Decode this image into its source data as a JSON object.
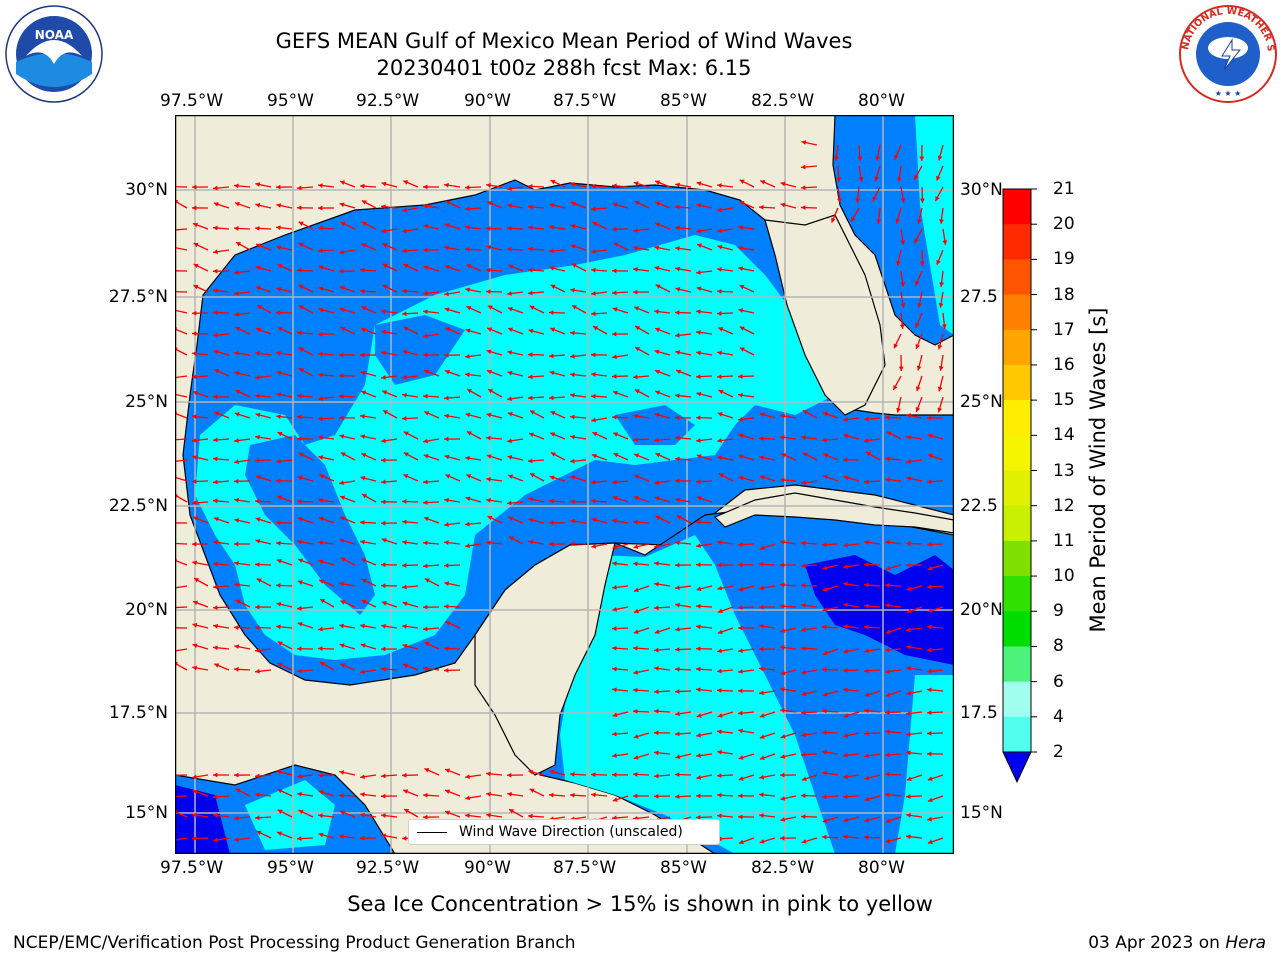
{
  "title": {
    "line1": "GEFS MEAN Gulf of Mexico Mean Period of Wind Waves",
    "line2": "20230401 t00z 288h fcst   Max: 6.15"
  },
  "axes": {
    "lon_labels": [
      "97.5°W",
      "95°W",
      "92.5°W",
      "90°W",
      "87.5°W",
      "85°W",
      "82.5°W",
      "80°W"
    ],
    "lat_labels_left": [
      "30°N",
      "27.5°N",
      "25°N",
      "22.5°N",
      "20°N",
      "17.5°N",
      "15°N"
    ],
    "lat_labels_right": [
      "30°N",
      "27.5",
      "25°N",
      "22.5",
      "20°N",
      "17.5",
      "15°N"
    ]
  },
  "legend": {
    "label": "Wind Wave Direction (unscaled)"
  },
  "colorbar": {
    "title": "Mean Period of Wind Waves [s]",
    "ticks": [
      "21",
      "20",
      "19",
      "18",
      "17",
      "16",
      "15",
      "14",
      "13",
      "12",
      "11",
      "10",
      "9",
      "8",
      "6",
      "4",
      "2"
    ],
    "colors": [
      "#ff0000",
      "#ff2a00",
      "#ff5500",
      "#ff7f00",
      "#ffa500",
      "#ffc800",
      "#ffee00",
      "#f5f500",
      "#e0f000",
      "#c8f000",
      "#7fe000",
      "#30e000",
      "#00dd00",
      "#4cf27a",
      "#a0ffee",
      "#50ffee",
      "#00ffff",
      "#0080ff",
      "#0000ee"
    ]
  },
  "caption": "Sea Ice Concentration > 15% is shown in pink to yellow",
  "footer": {
    "left": "NCEP/EMC/Verification Post Processing Product Generation Branch",
    "right_date": "03 Apr 2023 on ",
    "right_host": "Hera"
  },
  "logos": {
    "noaa_text": "NOAA",
    "nws_text": "NATIONAL WEATHER SERVICE"
  },
  "map_colors": {
    "land": "#efecda",
    "wave_2_4": "#0080ff",
    "wave_4_6": "#00ffff",
    "wave_lt2": "#0000ee",
    "arrow": "#ff0000"
  }
}
